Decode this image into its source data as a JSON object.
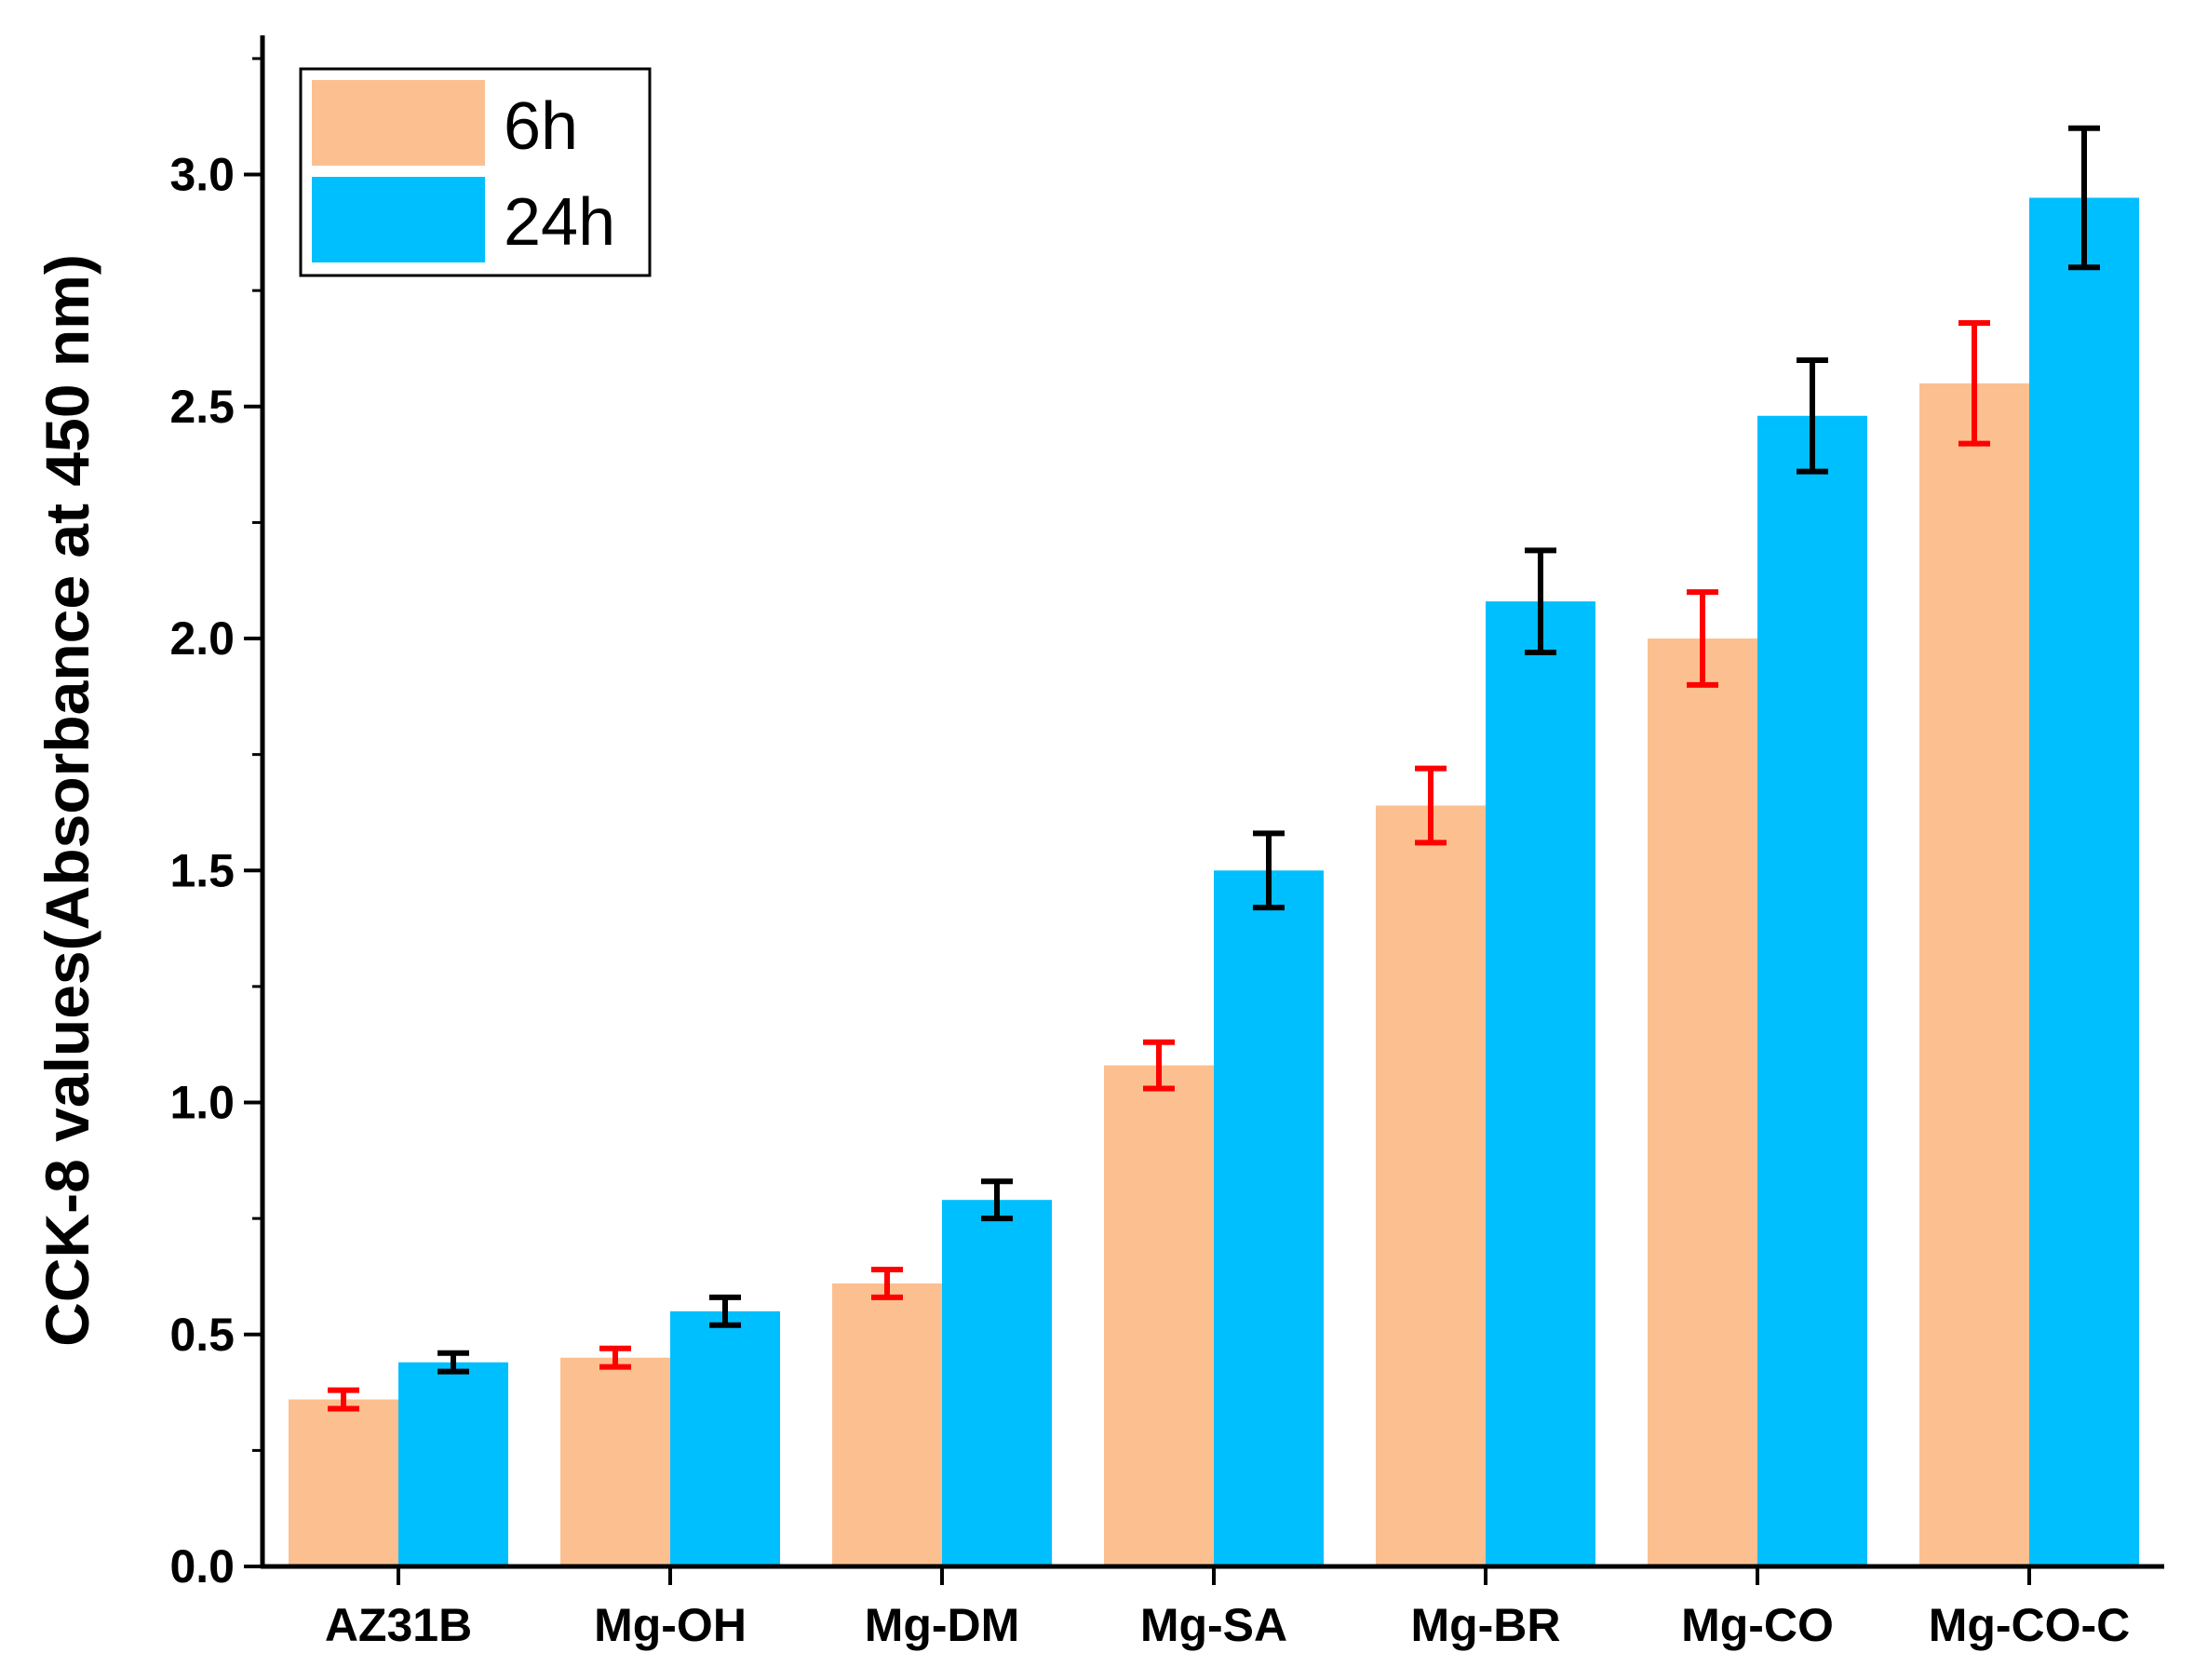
{
  "chart_data": {
    "type": "bar",
    "title": "",
    "xlabel": "",
    "ylabel": "CCK-8 values(Absorbance at 450 nm)",
    "ylim": [
      0,
      3.3
    ],
    "yticks": [
      0.0,
      0.5,
      1.0,
      1.5,
      2.0,
      2.5,
      3.0
    ],
    "ytick_labels": [
      "0.0",
      "0.5",
      "1.0",
      "1.5",
      "2.0",
      "2.5",
      "3.0"
    ],
    "grid": false,
    "legend_position": "top-left",
    "categories": [
      "AZ31B",
      "Mg-OH",
      "Mg-DM",
      "Mg-SA",
      "Mg-BR",
      "Mg-CO",
      "Mg-CO-C"
    ],
    "series": [
      {
        "name": "6h",
        "color": "#FCC090",
        "error_color": "#FF0000",
        "values": [
          0.36,
          0.45,
          0.61,
          1.08,
          1.64,
          2.0,
          2.55
        ],
        "errors": [
          0.02,
          0.02,
          0.03,
          0.05,
          0.08,
          0.1,
          0.13
        ]
      },
      {
        "name": "24h",
        "color": "#00BFFF",
        "error_color": "#000000",
        "values": [
          0.44,
          0.55,
          0.79,
          1.5,
          2.08,
          2.48,
          2.95
        ],
        "errors": [
          0.02,
          0.03,
          0.04,
          0.08,
          0.11,
          0.12,
          0.15
        ]
      }
    ]
  }
}
